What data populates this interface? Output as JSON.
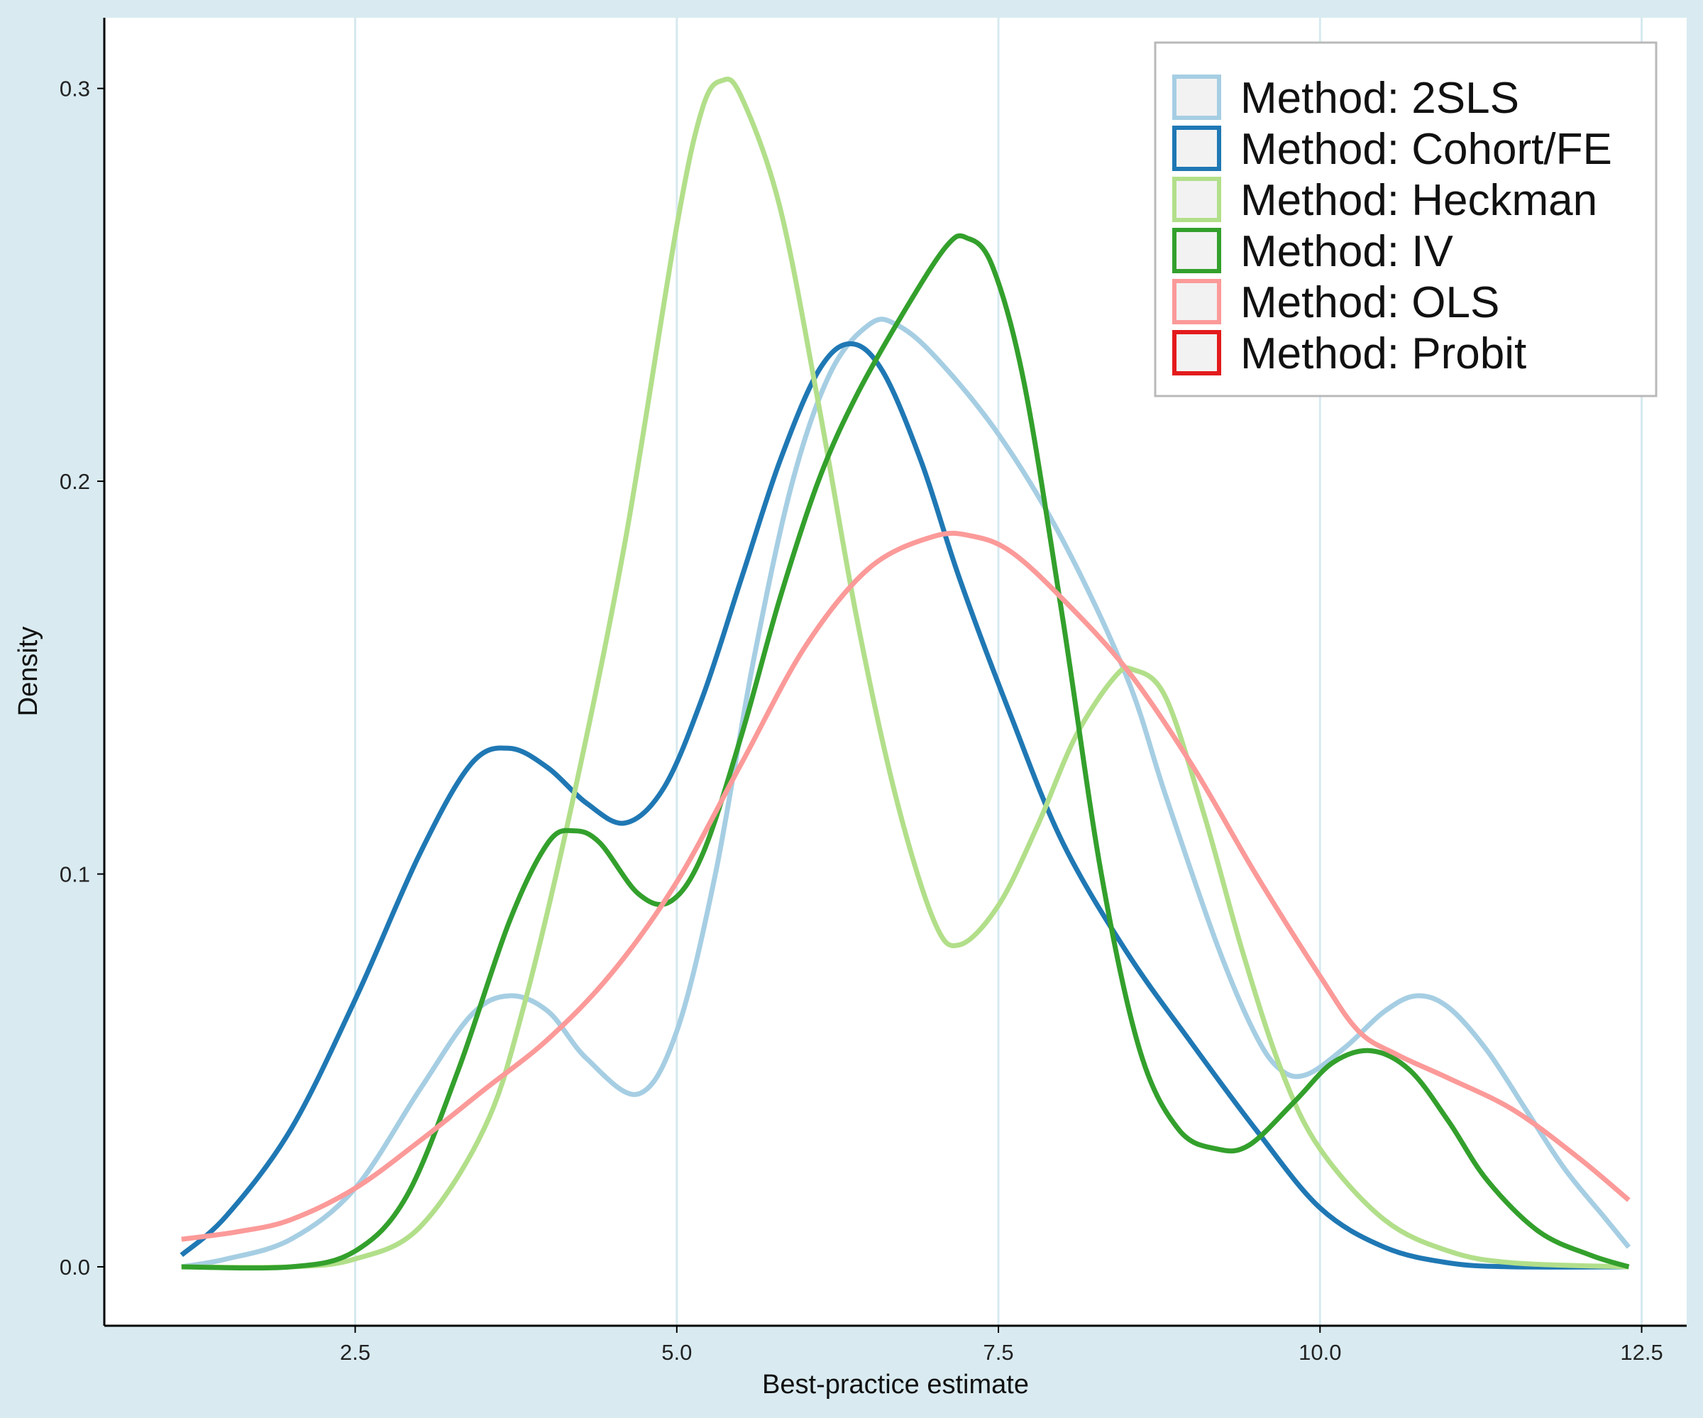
{
  "chart_data": {
    "type": "line",
    "title": "",
    "xlabel": "Best-practice estimate",
    "ylabel": "Density",
    "xlim": [
      0.55,
      12.85
    ],
    "ylim": [
      -0.015,
      0.318
    ],
    "xticks": [
      2.5,
      5.0,
      7.5,
      10.0,
      12.5
    ],
    "xtick_labels": [
      "2.5",
      "5.0",
      "7.5",
      "10.0",
      "12.5"
    ],
    "yticks": [
      0.0,
      0.1,
      0.2,
      0.3
    ],
    "ytick_labels": [
      "0.0",
      "0.1",
      "0.2",
      "0.3"
    ],
    "grid": "vertical",
    "legend_position": "top-right",
    "series": [
      {
        "name": "Method: 2SLS",
        "color": "#a6cee3",
        "points": [
          [
            1.15,
            0.0
          ],
          [
            1.5,
            0.002
          ],
          [
            2.0,
            0.007
          ],
          [
            2.5,
            0.02
          ],
          [
            3.0,
            0.045
          ],
          [
            3.4,
            0.064
          ],
          [
            3.7,
            0.069
          ],
          [
            4.0,
            0.065
          ],
          [
            4.3,
            0.053
          ],
          [
            4.7,
            0.044
          ],
          [
            5.0,
            0.06
          ],
          [
            5.3,
            0.1
          ],
          [
            5.6,
            0.155
          ],
          [
            5.9,
            0.2
          ],
          [
            6.2,
            0.228
          ],
          [
            6.5,
            0.24
          ],
          [
            6.7,
            0.24
          ],
          [
            7.0,
            0.232
          ],
          [
            7.5,
            0.212
          ],
          [
            8.0,
            0.185
          ],
          [
            8.5,
            0.15
          ],
          [
            8.8,
            0.12
          ],
          [
            9.2,
            0.082
          ],
          [
            9.5,
            0.059
          ],
          [
            9.7,
            0.05
          ],
          [
            9.9,
            0.049
          ],
          [
            10.2,
            0.056
          ],
          [
            10.5,
            0.065
          ],
          [
            10.75,
            0.069
          ],
          [
            11.0,
            0.066
          ],
          [
            11.3,
            0.055
          ],
          [
            11.6,
            0.04
          ],
          [
            11.9,
            0.025
          ],
          [
            12.2,
            0.013
          ],
          [
            12.4,
            0.005
          ]
        ]
      },
      {
        "name": "Method: Cohort/FE",
        "color": "#1f78b4",
        "points": [
          [
            1.15,
            0.003
          ],
          [
            1.5,
            0.013
          ],
          [
            2.0,
            0.035
          ],
          [
            2.5,
            0.068
          ],
          [
            3.0,
            0.105
          ],
          [
            3.4,
            0.128
          ],
          [
            3.7,
            0.132
          ],
          [
            4.0,
            0.127
          ],
          [
            4.3,
            0.118
          ],
          [
            4.6,
            0.113
          ],
          [
            4.9,
            0.122
          ],
          [
            5.2,
            0.145
          ],
          [
            5.5,
            0.175
          ],
          [
            5.8,
            0.205
          ],
          [
            6.1,
            0.228
          ],
          [
            6.35,
            0.235
          ],
          [
            6.6,
            0.228
          ],
          [
            6.9,
            0.205
          ],
          [
            7.2,
            0.175
          ],
          [
            7.6,
            0.14
          ],
          [
            8.0,
            0.108
          ],
          [
            8.5,
            0.08
          ],
          [
            9.0,
            0.057
          ],
          [
            9.5,
            0.035
          ],
          [
            10.0,
            0.015
          ],
          [
            10.5,
            0.005
          ],
          [
            11.0,
            0.001
          ],
          [
            11.5,
            0.0
          ],
          [
            12.4,
            0.0
          ]
        ]
      },
      {
        "name": "Method: Heckman",
        "color": "#b2df8a",
        "points": [
          [
            1.15,
            0.0
          ],
          [
            2.0,
            0.0
          ],
          [
            2.5,
            0.002
          ],
          [
            3.0,
            0.01
          ],
          [
            3.5,
            0.035
          ],
          [
            3.8,
            0.065
          ],
          [
            4.2,
            0.12
          ],
          [
            4.6,
            0.185
          ],
          [
            5.0,
            0.265
          ],
          [
            5.2,
            0.295
          ],
          [
            5.35,
            0.302
          ],
          [
            5.5,
            0.298
          ],
          [
            5.8,
            0.27
          ],
          [
            6.1,
            0.22
          ],
          [
            6.4,
            0.165
          ],
          [
            6.7,
            0.12
          ],
          [
            7.0,
            0.088
          ],
          [
            7.2,
            0.082
          ],
          [
            7.5,
            0.092
          ],
          [
            7.8,
            0.112
          ],
          [
            8.1,
            0.135
          ],
          [
            8.4,
            0.15
          ],
          [
            8.55,
            0.152
          ],
          [
            8.8,
            0.145
          ],
          [
            9.1,
            0.115
          ],
          [
            9.4,
            0.08
          ],
          [
            9.7,
            0.05
          ],
          [
            10.0,
            0.03
          ],
          [
            10.5,
            0.012
          ],
          [
            11.0,
            0.004
          ],
          [
            11.5,
            0.001
          ],
          [
            12.4,
            0.0
          ]
        ]
      },
      {
        "name": "Method: IV",
        "color": "#33a02c",
        "points": [
          [
            1.15,
            0.0
          ],
          [
            2.0,
            0.0
          ],
          [
            2.5,
            0.004
          ],
          [
            2.9,
            0.018
          ],
          [
            3.3,
            0.05
          ],
          [
            3.7,
            0.088
          ],
          [
            4.0,
            0.108
          ],
          [
            4.2,
            0.111
          ],
          [
            4.4,
            0.108
          ],
          [
            4.7,
            0.095
          ],
          [
            4.95,
            0.093
          ],
          [
            5.2,
            0.105
          ],
          [
            5.5,
            0.135
          ],
          [
            5.8,
            0.17
          ],
          [
            6.1,
            0.2
          ],
          [
            6.4,
            0.222
          ],
          [
            6.8,
            0.245
          ],
          [
            7.1,
            0.26
          ],
          [
            7.25,
            0.262
          ],
          [
            7.45,
            0.255
          ],
          [
            7.7,
            0.225
          ],
          [
            8.0,
            0.165
          ],
          [
            8.3,
            0.1
          ],
          [
            8.6,
            0.055
          ],
          [
            8.9,
            0.035
          ],
          [
            9.2,
            0.03
          ],
          [
            9.45,
            0.031
          ],
          [
            9.8,
            0.042
          ],
          [
            10.1,
            0.052
          ],
          [
            10.4,
            0.055
          ],
          [
            10.7,
            0.05
          ],
          [
            11.0,
            0.037
          ],
          [
            11.3,
            0.022
          ],
          [
            11.7,
            0.009
          ],
          [
            12.1,
            0.003
          ],
          [
            12.4,
            0.0
          ]
        ]
      },
      {
        "name": "Method: OLS",
        "color": "#fb9a99",
        "points": [
          [
            1.15,
            0.007
          ],
          [
            1.6,
            0.009
          ],
          [
            2.0,
            0.012
          ],
          [
            2.5,
            0.02
          ],
          [
            3.0,
            0.032
          ],
          [
            3.5,
            0.045
          ],
          [
            4.0,
            0.058
          ],
          [
            4.5,
            0.075
          ],
          [
            5.0,
            0.098
          ],
          [
            5.5,
            0.128
          ],
          [
            6.0,
            0.158
          ],
          [
            6.5,
            0.178
          ],
          [
            7.0,
            0.186
          ],
          [
            7.3,
            0.186
          ],
          [
            7.6,
            0.182
          ],
          [
            8.0,
            0.17
          ],
          [
            8.5,
            0.152
          ],
          [
            9.0,
            0.128
          ],
          [
            9.5,
            0.1
          ],
          [
            10.0,
            0.074
          ],
          [
            10.3,
            0.06
          ],
          [
            10.6,
            0.054
          ],
          [
            11.0,
            0.048
          ],
          [
            11.5,
            0.04
          ],
          [
            12.0,
            0.028
          ],
          [
            12.4,
            0.017
          ]
        ]
      },
      {
        "name": "Method: Probit",
        "color": "#e31a1c",
        "points": []
      }
    ]
  }
}
